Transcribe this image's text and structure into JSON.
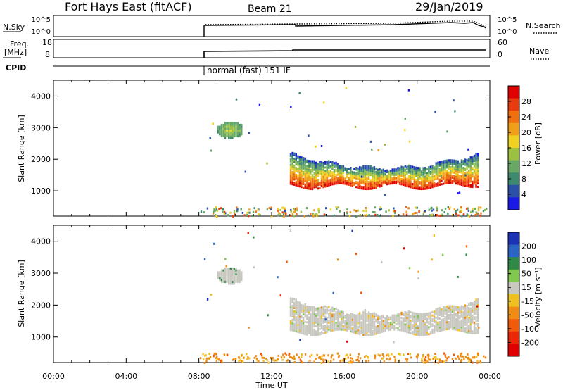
{
  "header": {
    "station": "Fort Hays East (fitACF)",
    "beam": "Beam 21",
    "date": "29/Jan/2019"
  },
  "top_panels": {
    "nsky_label": "N.Sky",
    "nsky_ticks": [
      "10^5",
      "10^0"
    ],
    "nsearch_label": "N.Search",
    "nsearch_ticks": [
      "10^5",
      "10^0"
    ],
    "freq_label_1": "Freq.",
    "freq_label_2": "[MHz]",
    "freq_ticks": [
      "18",
      "8"
    ],
    "nave_label": "Nave",
    "nave_ticks": [
      "60",
      "0"
    ],
    "cpid_label": "CPID",
    "cpid_text": "normal (fast) 151 IF"
  },
  "colors": {
    "power_scale": [
      "#1a1ae6",
      "#2a50a8",
      "#3e8a6e",
      "#66a864",
      "#9cc040",
      "#f0d020",
      "#f0a018",
      "#f07010",
      "#e83c10",
      "#e00000"
    ],
    "velocity_scale": [
      "#1a32b4",
      "#2a64c4",
      "#2e8a46",
      "#80c850",
      "#c8c8c0",
      "#f0c020",
      "#f08c14",
      "#f05a0a",
      "#e82808",
      "#e00000"
    ]
  },
  "chart_data": [
    {
      "type": "heatmap",
      "name": "power",
      "xlabel": "",
      "ylabel": "Slant Range [km]",
      "xlim": [
        0,
        24
      ],
      "ylim": [
        200,
        4500
      ],
      "yticks": [
        "1000",
        "2000",
        "3000",
        "4000"
      ],
      "colorbar_label": "Power [dB]",
      "colorbar_ticks": [
        "4",
        "8",
        "12",
        "16",
        "20",
        "24",
        "28"
      ],
      "colorbar_range": [
        0,
        32
      ],
      "regions": [
        {
          "desc": "patch",
          "x": [
            8.9,
            10.3
          ],
          "y": [
            2700,
            3200
          ],
          "value": 10
        },
        {
          "desc": "band_edge",
          "x": [
            13.0,
            23.4
          ],
          "y": [
            1500,
            2200
          ],
          "value": 14
        },
        {
          "desc": "band_core",
          "x": [
            13.6,
            23.0
          ],
          "y": [
            1200,
            1700
          ],
          "value": 28
        }
      ]
    },
    {
      "type": "heatmap",
      "name": "velocity",
      "xlabel": "Time UT",
      "ylabel": "Slant Range [km]",
      "xlim": [
        0,
        24
      ],
      "ylim": [
        200,
        4500
      ],
      "xticks": [
        "00:00",
        "04:00",
        "08:00",
        "12:00",
        "16:00",
        "20:00",
        "00:00"
      ],
      "yticks": [
        "1000",
        "2000",
        "3000",
        "4000"
      ],
      "colorbar_label": "Velocity [m s⁻¹]",
      "colorbar_ticks": [
        "200",
        "100",
        "50",
        "15",
        "-15",
        "-50",
        "-100",
        "-200"
      ],
      "regions": [
        {
          "desc": "patch",
          "x": [
            8.9,
            10.3
          ],
          "y": [
            2700,
            3200
          ],
          "value": 0
        },
        {
          "desc": "band",
          "x": [
            13.0,
            23.4
          ],
          "y": [
            1200,
            2200
          ],
          "value": 0
        },
        {
          "desc": "near_range",
          "x": [
            8.0,
            24.0
          ],
          "y": [
            200,
            500
          ],
          "value": -50
        }
      ]
    }
  ]
}
